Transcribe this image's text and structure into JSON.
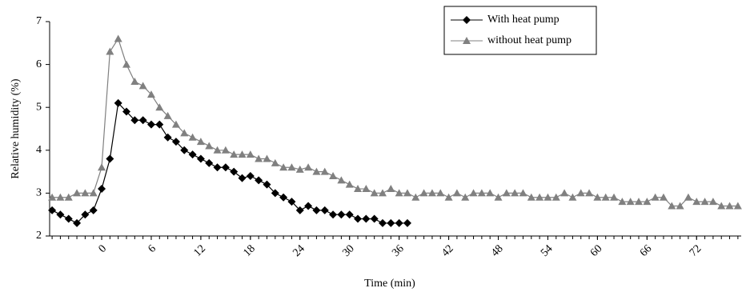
{
  "chart_data": {
    "type": "line",
    "x_label": "Time (min)",
    "y_label": "Relative humidity (%)",
    "x": [
      -6,
      -5,
      -4,
      -3,
      -2,
      -1,
      0,
      1,
      2,
      3,
      4,
      5,
      6,
      7,
      8,
      9,
      10,
      11,
      12,
      13,
      14,
      15,
      16,
      17,
      18,
      19,
      20,
      21,
      22,
      23,
      24,
      25,
      26,
      27,
      28,
      29,
      30,
      31,
      32,
      33,
      34,
      35,
      36,
      37,
      38,
      39,
      40,
      41,
      42,
      43,
      44,
      45,
      46,
      47,
      48,
      49,
      50,
      51,
      52,
      53,
      54,
      55,
      56,
      57,
      58,
      59,
      60,
      61,
      62,
      63,
      64,
      65,
      66,
      67,
      68,
      69,
      70,
      71,
      72,
      73,
      74,
      75,
      76,
      77
    ],
    "series": [
      {
        "name": "With heat pump",
        "color": "#000000",
        "marker": "diamond",
        "values": [
          2.6,
          2.5,
          2.4,
          2.3,
          2.5,
          2.6,
          3.1,
          3.8,
          5.1,
          4.9,
          4.7,
          4.7,
          4.6,
          4.6,
          4.3,
          4.2,
          4.0,
          3.9,
          3.8,
          3.7,
          3.6,
          3.6,
          3.5,
          3.35,
          3.4,
          3.3,
          3.2,
          3.0,
          2.9,
          2.8,
          2.6,
          2.7,
          2.6,
          2.6,
          2.5,
          2.5,
          2.5,
          2.4,
          2.4,
          2.4,
          2.3,
          2.3,
          2.3,
          2.3,
          null,
          null,
          null,
          null,
          null,
          null,
          null,
          null,
          null,
          null,
          null,
          null,
          null,
          null,
          null,
          null,
          null,
          null,
          null,
          null,
          null,
          null,
          null,
          null,
          null,
          null,
          null,
          null,
          null,
          null,
          null,
          null,
          null,
          null,
          null,
          null,
          null,
          null,
          null,
          null
        ]
      },
      {
        "name": "without heat pump",
        "color": "#808080",
        "marker": "triangle",
        "values": [
          2.9,
          2.9,
          2.9,
          3.0,
          3.0,
          3.0,
          3.6,
          6.3,
          6.6,
          6.0,
          5.6,
          5.5,
          5.3,
          5.0,
          4.8,
          4.6,
          4.4,
          4.3,
          4.2,
          4.1,
          4.0,
          4.0,
          3.9,
          3.9,
          3.9,
          3.8,
          3.8,
          3.7,
          3.6,
          3.6,
          3.55,
          3.6,
          3.5,
          3.5,
          3.4,
          3.3,
          3.2,
          3.1,
          3.1,
          3.0,
          3.0,
          3.1,
          3.0,
          3.0,
          2.9,
          3.0,
          3.0,
          3.0,
          2.9,
          3.0,
          2.9,
          3.0,
          3.0,
          3.0,
          2.9,
          3.0,
          3.0,
          3.0,
          2.9,
          2.9,
          2.9,
          2.9,
          3.0,
          2.9,
          3.0,
          3.0,
          2.9,
          2.9,
          2.9,
          2.8,
          2.8,
          2.8,
          2.8,
          2.9,
          2.9,
          2.7,
          2.7,
          2.9,
          2.8,
          2.8,
          2.8,
          2.7,
          2.7,
          2.7
        ]
      }
    ],
    "xlim": [
      -6.3,
      77.4
    ],
    "xticks": [
      0,
      6,
      12,
      18,
      24,
      30,
      36,
      42,
      48,
      54,
      60,
      66,
      72
    ],
    "ylim": [
      2,
      7
    ],
    "yticks": [
      2,
      3,
      4,
      5,
      6,
      7
    ],
    "legend": "upper right"
  }
}
